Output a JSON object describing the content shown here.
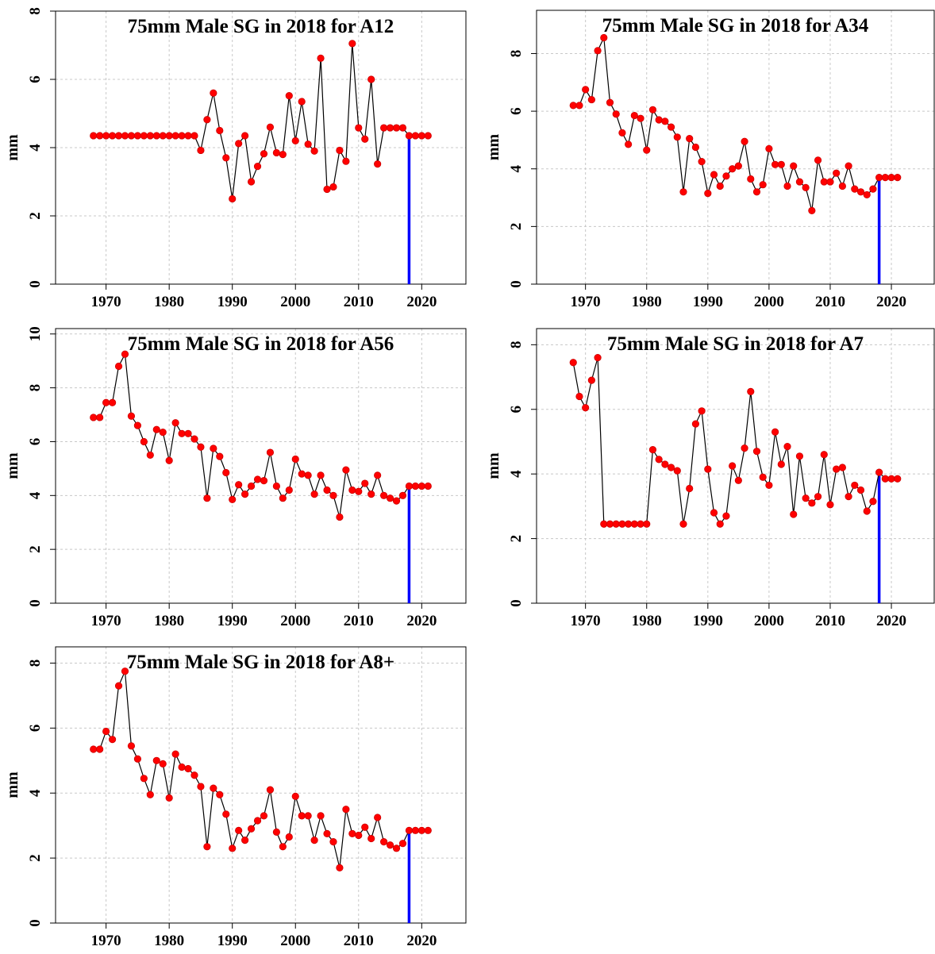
{
  "chart_data": [
    {
      "type": "line",
      "title": "75mm Male SG in 2018 for A12",
      "xlabel": "",
      "ylabel": "mm",
      "xlim": [
        1962,
        2027
      ],
      "ylim": [
        0,
        8
      ],
      "xticks": [
        "1970",
        "1980",
        "1990",
        "2000",
        "2010",
        "2020"
      ],
      "yticks": [
        "0",
        "2",
        "4",
        "6",
        "8"
      ],
      "grid": true,
      "marker_year": 2018,
      "x": [
        1968,
        1969,
        1970,
        1971,
        1972,
        1973,
        1974,
        1975,
        1976,
        1977,
        1978,
        1979,
        1980,
        1981,
        1982,
        1983,
        1984,
        1985,
        1986,
        1987,
        1988,
        1989,
        1990,
        1991,
        1992,
        1993,
        1994,
        1995,
        1996,
        1997,
        1998,
        1999,
        2000,
        2001,
        2002,
        2003,
        2004,
        2005,
        2006,
        2007,
        2008,
        2009,
        2010,
        2011,
        2012,
        2013,
        2014,
        2015,
        2016,
        2017,
        2018,
        2019,
        2020,
        2021
      ],
      "y": [
        4.35,
        4.35,
        4.35,
        4.35,
        4.35,
        4.35,
        4.35,
        4.35,
        4.35,
        4.35,
        4.35,
        4.35,
        4.35,
        4.35,
        4.35,
        4.35,
        4.35,
        3.92,
        4.82,
        5.6,
        4.5,
        3.7,
        2.5,
        4.12,
        4.35,
        3.0,
        3.45,
        3.82,
        4.6,
        3.85,
        3.8,
        5.52,
        4.2,
        5.35,
        4.1,
        3.9,
        6.62,
        2.78,
        2.85,
        3.92,
        3.6,
        7.05,
        4.58,
        4.25,
        6.0,
        3.52,
        4.58,
        4.58,
        4.58,
        4.58,
        4.35,
        4.35,
        4.35,
        4.35
      ]
    },
    {
      "type": "line",
      "title": "75mm Male SG in 2018 for A34",
      "xlabel": "",
      "ylabel": "mm",
      "xlim": [
        1962,
        2027
      ],
      "ylim": [
        0,
        9.5
      ],
      "xticks": [
        "1970",
        "1980",
        "1990",
        "2000",
        "2010",
        "2020"
      ],
      "yticks": [
        "0",
        "2",
        "4",
        "6",
        "8"
      ],
      "grid": true,
      "marker_year": 2018,
      "x": [
        1968,
        1969,
        1970,
        1971,
        1972,
        1973,
        1974,
        1975,
        1976,
        1977,
        1978,
        1979,
        1980,
        1981,
        1982,
        1983,
        1984,
        1985,
        1986,
        1987,
        1988,
        1989,
        1990,
        1991,
        1992,
        1993,
        1994,
        1995,
        1996,
        1997,
        1998,
        1999,
        2000,
        2001,
        2002,
        2003,
        2004,
        2005,
        2006,
        2007,
        2008,
        2009,
        2010,
        2011,
        2012,
        2013,
        2014,
        2015,
        2016,
        2017,
        2018,
        2019,
        2020,
        2021
      ],
      "y": [
        6.2,
        6.2,
        6.75,
        6.4,
        8.1,
        8.55,
        6.3,
        5.9,
        5.25,
        4.85,
        5.85,
        5.75,
        4.65,
        6.05,
        5.7,
        5.65,
        5.45,
        5.1,
        3.2,
        5.05,
        4.75,
        4.25,
        3.15,
        3.8,
        3.4,
        3.75,
        4.0,
        4.1,
        4.95,
        3.65,
        3.2,
        3.45,
        4.7,
        4.15,
        4.15,
        3.4,
        4.1,
        3.55,
        3.35,
        2.55,
        4.3,
        3.55,
        3.55,
        3.85,
        3.4,
        4.1,
        3.3,
        3.2,
        3.1,
        3.3,
        3.7,
        3.7,
        3.7,
        3.7
      ]
    },
    {
      "type": "line",
      "title": "75mm Male SG in 2018 for A56",
      "xlabel": "",
      "ylabel": "mm",
      "xlim": [
        1962,
        2027
      ],
      "ylim": [
        0,
        10.2
      ],
      "xticks": [
        "1970",
        "1980",
        "1990",
        "2000",
        "2010",
        "2020"
      ],
      "yticks": [
        "0",
        "2",
        "4",
        "6",
        "8",
        "10"
      ],
      "grid": true,
      "marker_year": 2018,
      "x": [
        1968,
        1969,
        1970,
        1971,
        1972,
        1973,
        1974,
        1975,
        1976,
        1977,
        1978,
        1979,
        1980,
        1981,
        1982,
        1983,
        1984,
        1985,
        1986,
        1987,
        1988,
        1989,
        1990,
        1991,
        1992,
        1993,
        1994,
        1995,
        1996,
        1997,
        1998,
        1999,
        2000,
        2001,
        2002,
        2003,
        2004,
        2005,
        2006,
        2007,
        2008,
        2009,
        2010,
        2011,
        2012,
        2013,
        2014,
        2015,
        2016,
        2017,
        2018,
        2019,
        2020,
        2021
      ],
      "y": [
        6.9,
        6.9,
        7.45,
        7.45,
        8.8,
        9.25,
        6.95,
        6.6,
        6.0,
        5.5,
        6.45,
        6.35,
        5.3,
        6.7,
        6.3,
        6.3,
        6.1,
        5.8,
        3.9,
        5.75,
        5.45,
        4.85,
        3.85,
        4.4,
        4.05,
        4.35,
        4.6,
        4.55,
        5.6,
        4.35,
        3.9,
        4.2,
        5.35,
        4.8,
        4.75,
        4.05,
        4.75,
        4.2,
        4.0,
        3.2,
        4.95,
        4.2,
        4.15,
        4.45,
        4.05,
        4.75,
        4.0,
        3.9,
        3.8,
        4.0,
        4.35,
        4.35,
        4.35,
        4.35
      ]
    },
    {
      "type": "line",
      "title": "75mm Male SG in 2018 for A7",
      "xlabel": "",
      "ylabel": "mm",
      "xlim": [
        1962,
        2027
      ],
      "ylim": [
        0,
        8.5
      ],
      "xticks": [
        "1970",
        "1980",
        "1990",
        "2000",
        "2010",
        "2020"
      ],
      "yticks": [
        "0",
        "2",
        "4",
        "6",
        "8"
      ],
      "grid": true,
      "marker_year": 2018,
      "x": [
        1968,
        1969,
        1970,
        1971,
        1972,
        1973,
        1974,
        1975,
        1976,
        1977,
        1978,
        1979,
        1980,
        1981,
        1982,
        1983,
        1984,
        1985,
        1986,
        1987,
        1988,
        1989,
        1990,
        1991,
        1992,
        1993,
        1994,
        1995,
        1996,
        1997,
        1998,
        1999,
        2000,
        2001,
        2002,
        2003,
        2004,
        2005,
        2006,
        2007,
        2008,
        2009,
        2010,
        2011,
        2012,
        2013,
        2014,
        2015,
        2016,
        2017,
        2018,
        2019,
        2020,
        2021
      ],
      "y": [
        7.45,
        6.4,
        6.05,
        6.9,
        7.6,
        2.45,
        2.45,
        2.45,
        2.45,
        2.45,
        2.45,
        2.45,
        2.45,
        4.75,
        4.45,
        4.3,
        4.2,
        4.1,
        2.45,
        3.55,
        5.55,
        5.95,
        4.15,
        2.8,
        2.45,
        2.7,
        4.25,
        3.8,
        4.8,
        6.55,
        4.7,
        3.9,
        3.65,
        5.3,
        4.3,
        4.85,
        2.75,
        4.55,
        3.25,
        3.1,
        3.3,
        4.6,
        3.05,
        4.15,
        4.2,
        3.3,
        3.65,
        3.5,
        2.85,
        3.15,
        4.05,
        3.85,
        3.85,
        3.85
      ]
    },
    {
      "type": "line",
      "title": "75mm Male SG in 2018 for A8+",
      "xlabel": "",
      "ylabel": "mm",
      "xlim": [
        1962,
        2027
      ],
      "ylim": [
        0,
        8.5
      ],
      "xticks": [
        "1970",
        "1980",
        "1990",
        "2000",
        "2010",
        "2020"
      ],
      "yticks": [
        "0",
        "2",
        "4",
        "6",
        "8"
      ],
      "grid": true,
      "marker_year": 2018,
      "x": [
        1968,
        1969,
        1970,
        1971,
        1972,
        1973,
        1974,
        1975,
        1976,
        1977,
        1978,
        1979,
        1980,
        1981,
        1982,
        1983,
        1984,
        1985,
        1986,
        1987,
        1988,
        1989,
        1990,
        1991,
        1992,
        1993,
        1994,
        1995,
        1996,
        1997,
        1998,
        1999,
        2000,
        2001,
        2002,
        2003,
        2004,
        2005,
        2006,
        2007,
        2008,
        2009,
        2010,
        2011,
        2012,
        2013,
        2014,
        2015,
        2016,
        2017,
        2018,
        2019,
        2020,
        2021
      ],
      "y": [
        5.35,
        5.35,
        5.9,
        5.65,
        7.3,
        7.75,
        5.45,
        5.05,
        4.45,
        3.95,
        5.0,
        4.9,
        3.85,
        5.2,
        4.8,
        4.75,
        4.55,
        4.2,
        2.35,
        4.15,
        3.95,
        3.35,
        2.3,
        2.85,
        2.55,
        2.9,
        3.15,
        3.3,
        4.1,
        2.8,
        2.35,
        2.65,
        3.9,
        3.3,
        3.3,
        2.55,
        3.3,
        2.75,
        2.5,
        1.7,
        3.5,
        2.75,
        2.7,
        2.95,
        2.6,
        3.25,
        2.5,
        2.4,
        2.3,
        2.45,
        2.85,
        2.85,
        2.85,
        2.85
      ]
    }
  ]
}
